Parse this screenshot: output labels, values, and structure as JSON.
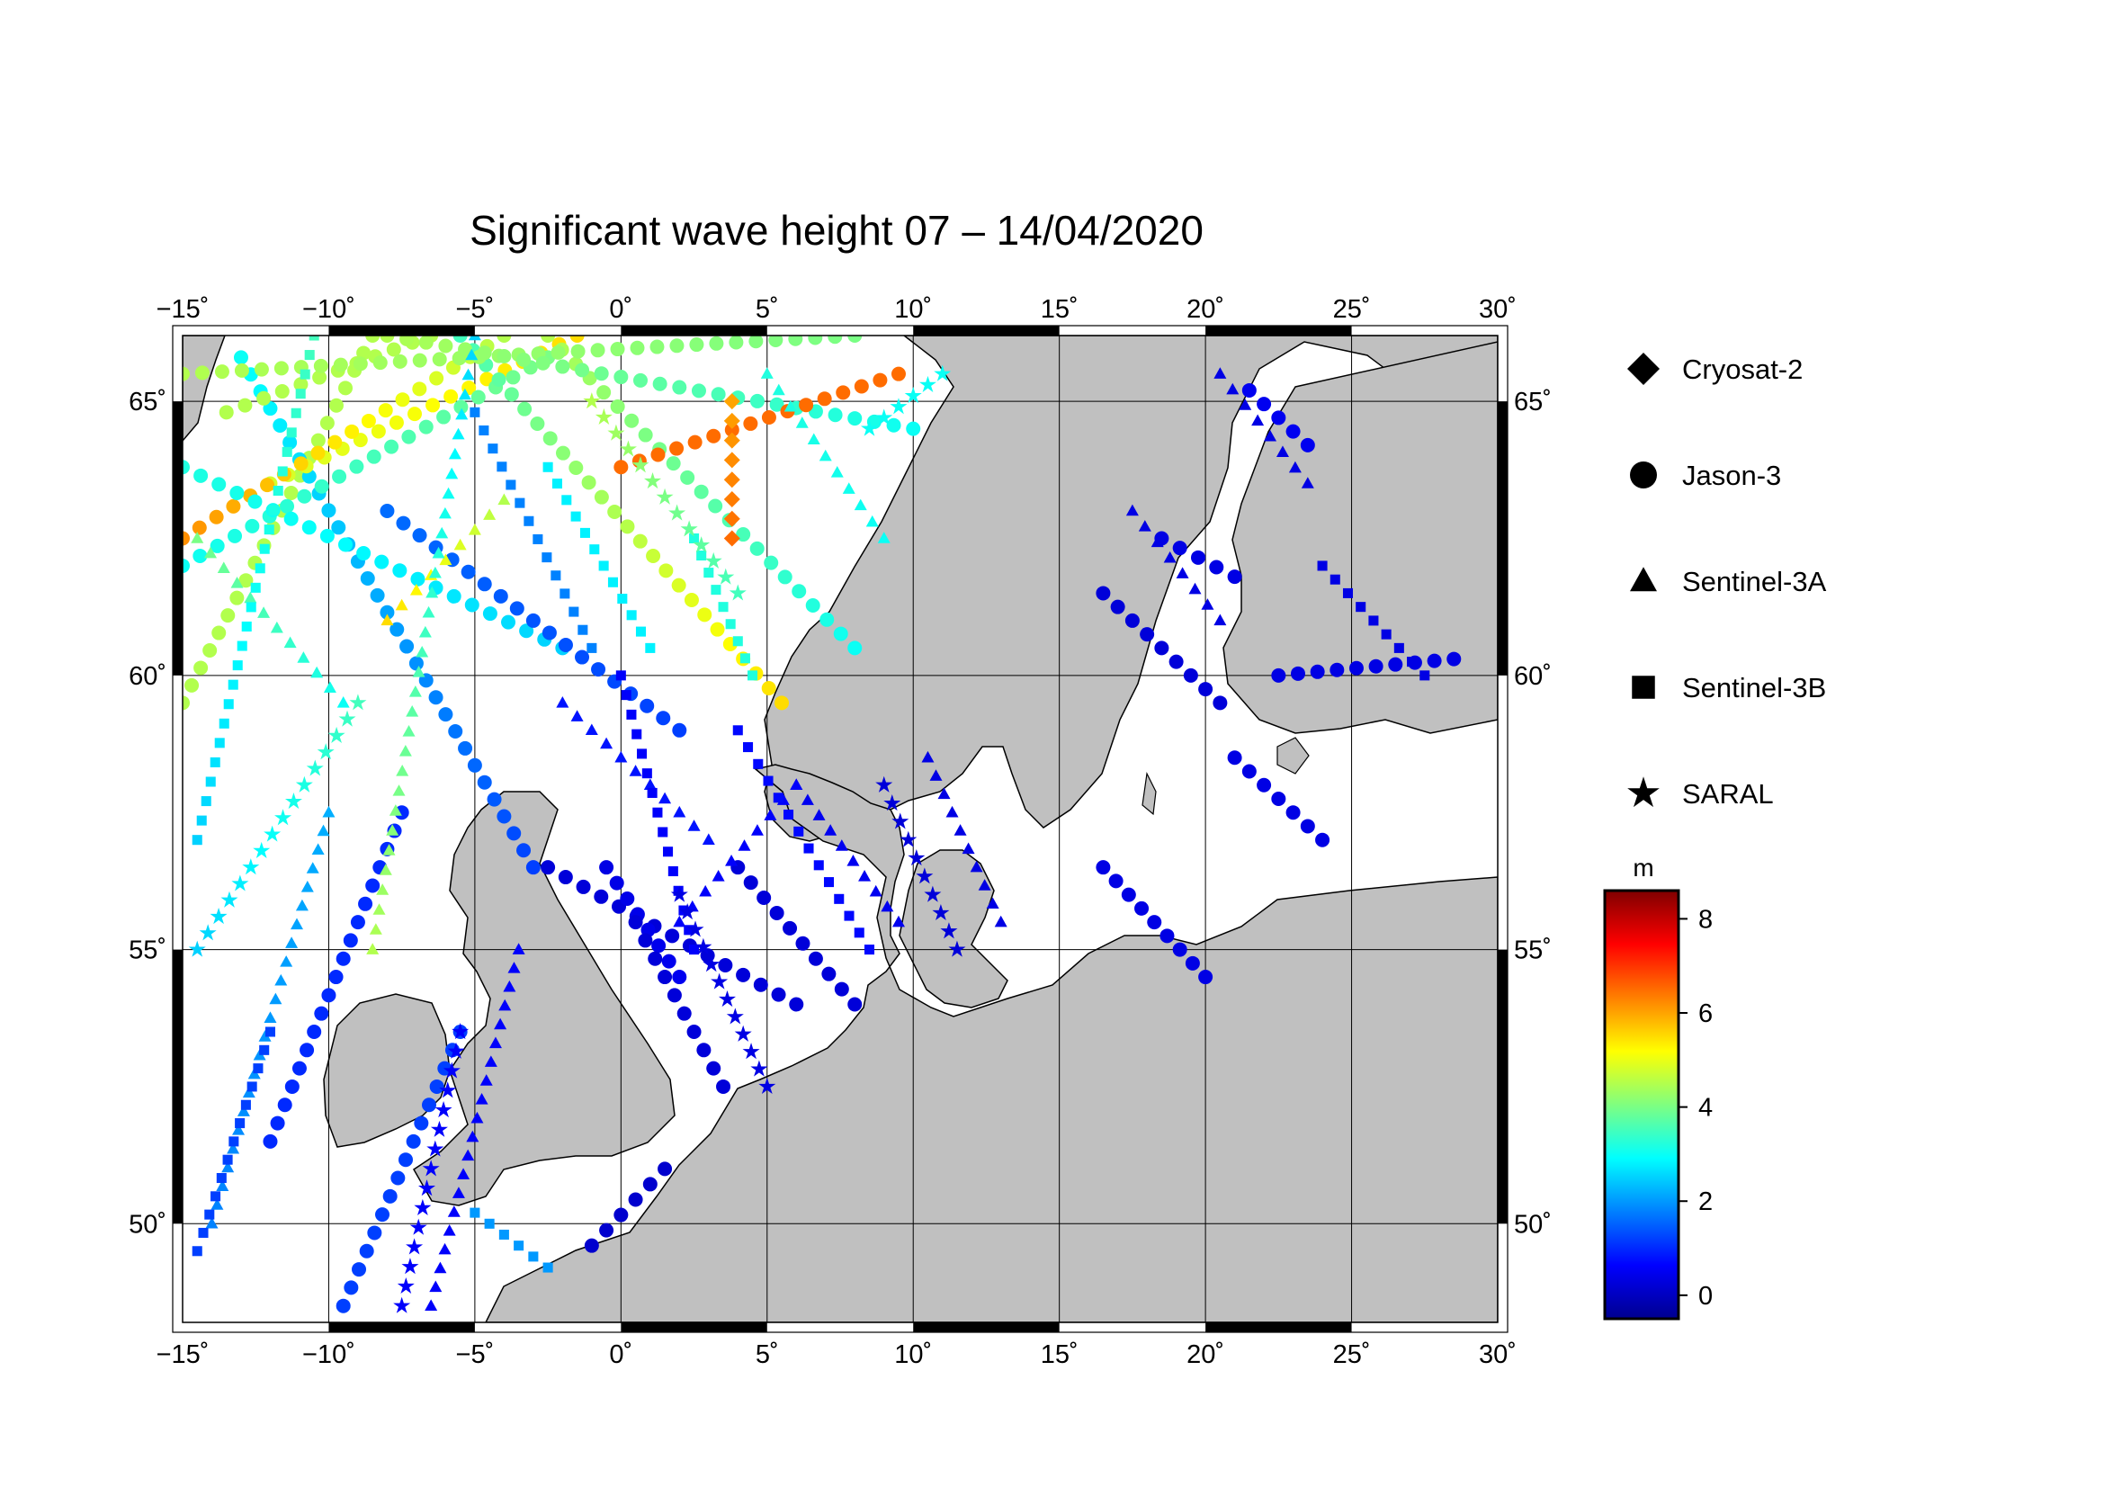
{
  "title": "Significant wave height 07 – 14/04/2020",
  "map": {
    "lon_range": [
      -15,
      30
    ],
    "lat_range": [
      48.2,
      66.2
    ],
    "lon_ticks": [
      "−15˚",
      "−10˚",
      "−5˚",
      "0˚",
      "5˚",
      "10˚",
      "15˚",
      "20˚",
      "25˚",
      "30˚"
    ],
    "lat_ticks": [
      "50˚",
      "55˚",
      "60˚",
      "65˚"
    ],
    "land_color": "#c0c0c0",
    "sea_color": "#ffffff"
  },
  "legend": {
    "items": [
      {
        "label": "Cryosat-2",
        "symbol": "diamond"
      },
      {
        "label": "Jason-3",
        "symbol": "circle"
      },
      {
        "label": "Sentinel-3A",
        "symbol": "triangle"
      },
      {
        "label": "Sentinel-3B",
        "symbol": "square"
      },
      {
        "label": "SARAL",
        "symbol": "star"
      }
    ]
  },
  "colorbar": {
    "unit": "m",
    "min": -0.5,
    "max": 8.6,
    "ticks": [
      "8",
      "6",
      "4",
      "2",
      "0"
    ],
    "colormap": "jet"
  },
  "chart_data": {
    "type": "scatter",
    "title": "Significant wave height 07 – 14/04/2020",
    "xlabel": "",
    "ylabel": "",
    "xlim": [
      -15,
      30
    ],
    "ylim": [
      48.2,
      66.2
    ],
    "value_unit": "m",
    "series": [
      {
        "name": "Jason-3",
        "marker": "circle",
        "tracks": [
          {
            "from": [
              -15,
              59.5
            ],
            "to": [
              -8.5,
              66.2
            ],
            "v0": 4.5,
            "v1": 4.5
          },
          {
            "from": [
              -13,
              65.8
            ],
            "to": [
              -3,
              56.5
            ],
            "v0": 3.0,
            "v1": 1.2
          },
          {
            "from": [
              -12,
              63.5
            ],
            "to": [
              -1.5,
              66.2
            ],
            "v0": 4.8,
            "v1": 5.5
          },
          {
            "from": [
              -13.5,
              64.8
            ],
            "to": [
              -6.5,
              66.2
            ],
            "v0": 4.5,
            "v1": 4.5
          },
          {
            "from": [
              -15,
              62.0
            ],
            "to": [
              -2.5,
              65.8
            ],
            "v0": 3.0,
            "v1": 4.0
          },
          {
            "from": [
              -15,
              62.5
            ],
            "to": [
              -4.0,
              66.2
            ],
            "v0": 6.2,
            "v1": 4.5
          },
          {
            "from": [
              -5.5,
              66.2
            ],
            "to": [
              5.5,
              59.5
            ],
            "v0": 3.5,
            "v1": 5.5
          },
          {
            "from": [
              -2.5,
              66.2
            ],
            "to": [
              8.0,
              60.5
            ],
            "v0": 4.5,
            "v1": 3.0
          },
          {
            "from": [
              -15,
              65.5
            ],
            "to": [
              8.0,
              66.2
            ],
            "v0": 4.5,
            "v1": 4.0
          },
          {
            "from": [
              -8,
              66.2
            ],
            "to": [
              10,
              64.5
            ],
            "v0": 4.5,
            "v1": 3.0
          },
          {
            "from": [
              0,
              63.8
            ],
            "to": [
              9.5,
              65.5
            ],
            "v0": 6.5,
            "v1": 6.5
          },
          {
            "from": [
              -15,
              63.8
            ],
            "to": [
              -2,
              60.5
            ],
            "v0": 3.2,
            "v1": 2.5
          },
          {
            "from": [
              -8,
              63.0
            ],
            "to": [
              2,
              59.0
            ],
            "v0": 1.6,
            "v1": 1.2
          },
          {
            "from": [
              -7.5,
              57.5
            ],
            "to": [
              -12,
              51.5
            ],
            "v0": 1.0,
            "v1": 1.0
          },
          {
            "from": [
              -5.5,
              53.5
            ],
            "to": [
              -9.5,
              48.5
            ],
            "v0": 1.2,
            "v1": 1.2
          },
          {
            "from": [
              -2.5,
              56.5
            ],
            "to": [
              6.0,
              54.0
            ],
            "v0": 0.3,
            "v1": 0.3
          },
          {
            "from": [
              -0.5,
              56.5
            ],
            "to": [
              2.0,
              54.5
            ],
            "v0": 0.4,
            "v1": 0.5
          },
          {
            "from": [
              0.5,
              55.5
            ],
            "to": [
              3.5,
              52.5
            ],
            "v0": 0.3,
            "v1": 0.3
          },
          {
            "from": [
              4.0,
              56.5
            ],
            "to": [
              8.0,
              54.0
            ],
            "v0": 0.3,
            "v1": 0.3
          },
          {
            "from": [
              -1.0,
              49.6
            ],
            "to": [
              1.5,
              51.0
            ],
            "v0": 0.2,
            "v1": 0.2
          },
          {
            "from": [
              16.5,
              56.5
            ],
            "to": [
              20.0,
              54.5
            ],
            "v0": 0.4,
            "v1": 0.4
          },
          {
            "from": [
              16.5,
              61.5
            ],
            "to": [
              20.5,
              59.5
            ],
            "v0": 0.3,
            "v1": 0.3
          },
          {
            "from": [
              21.5,
              65.2
            ],
            "to": [
              23.5,
              64.2
            ],
            "v0": 0.5,
            "v1": 0.5
          },
          {
            "from": [
              22.5,
              60.0
            ],
            "to": [
              28.5,
              60.3
            ],
            "v0": 0.4,
            "v1": 0.4
          },
          {
            "from": [
              21.0,
              58.5
            ],
            "to": [
              24.0,
              57.0
            ],
            "v0": 0.4,
            "v1": 0.4
          },
          {
            "from": [
              18.5,
              62.5
            ],
            "to": [
              21.0,
              61.8
            ],
            "v0": 0.4,
            "v1": 0.4
          }
        ]
      },
      {
        "name": "Sentinel-3A",
        "marker": "triangle",
        "tracks": [
          {
            "from": [
              -14.5,
              62.5
            ],
            "to": [
              -9.5,
              59.5
            ],
            "v0": 4.0,
            "v1": 3.0
          },
          {
            "from": [
              -8,
              61.0
            ],
            "to": [
              -4,
              63.2
            ],
            "v0": 5.5,
            "v1": 4.5
          },
          {
            "from": [
              -5,
              66.2
            ],
            "to": [
              -8.5,
              55.0
            ],
            "v0": 2.5,
            "v1": 4.5
          },
          {
            "from": [
              -14.0,
              50.0
            ],
            "to": [
              -10.0,
              57.5
            ],
            "v0": 1.8,
            "v1": 2.2
          },
          {
            "from": [
              -6.5,
              48.5
            ],
            "to": [
              -3.5,
              55.0
            ],
            "v0": 0.6,
            "v1": 0.6
          },
          {
            "from": [
              -2.0,
              59.5
            ],
            "to": [
              3.0,
              57.0
            ],
            "v0": 0.8,
            "v1": 0.8
          },
          {
            "from": [
              6.0,
              58.0
            ],
            "to": [
              9.5,
              55.5
            ],
            "v0": 0.5,
            "v1": 0.5
          },
          {
            "from": [
              2.0,
              55.5
            ],
            "to": [
              6.0,
              58.0
            ],
            "v0": 0.6,
            "v1": 0.6
          },
          {
            "from": [
              20.5,
              65.5
            ],
            "to": [
              23.5,
              63.5
            ],
            "v0": 0.4,
            "v1": 0.4
          },
          {
            "from": [
              17.5,
              63.0
            ],
            "to": [
              20.5,
              61.0
            ],
            "v0": 0.4,
            "v1": 0.4
          },
          {
            "from": [
              10.5,
              58.5
            ],
            "to": [
              13.0,
              55.5
            ],
            "v0": 0.4,
            "v1": 0.4
          },
          {
            "from": [
              5.0,
              65.5
            ],
            "to": [
              9.0,
              62.5
            ],
            "v0": 3.2,
            "v1": 3.0
          }
        ]
      },
      {
        "name": "Sentinel-3B",
        "marker": "square",
        "tracks": [
          {
            "from": [
              -10.5,
              66.2
            ],
            "to": [
              -14.5,
              57.0
            ],
            "v0": 3.5,
            "v1": 2.5
          },
          {
            "from": [
              -5.0,
              64.8
            ],
            "to": [
              -1.0,
              60.5
            ],
            "v0": 1.8,
            "v1": 1.8
          },
          {
            "from": [
              -2.5,
              63.8
            ],
            "to": [
              1.0,
              60.5
            ],
            "v0": 2.8,
            "v1": 2.8
          },
          {
            "from": [
              2.5,
              62.5
            ],
            "to": [
              4.5,
              60.0
            ],
            "v0": 3.2,
            "v1": 3.2
          },
          {
            "from": [
              4.0,
              59.0
            ],
            "to": [
              8.5,
              55.0
            ],
            "v0": 0.7,
            "v1": 0.7
          },
          {
            "from": [
              0.0,
              60.0
            ],
            "to": [
              2.5,
              55.0
            ],
            "v0": 0.6,
            "v1": 0.6
          },
          {
            "from": [
              -14.5,
              49.5
            ],
            "to": [
              -12.0,
              53.5
            ],
            "v0": 1.2,
            "v1": 1.2
          },
          {
            "from": [
              -5.0,
              50.2
            ],
            "to": [
              -2.5,
              49.2
            ],
            "v0": 2.0,
            "v1": 2.0
          },
          {
            "from": [
              24.0,
              62.0
            ],
            "to": [
              27.5,
              60.0
            ],
            "v0": 0.4,
            "v1": 0.4
          }
        ]
      },
      {
        "name": "SARAL",
        "marker": "star",
        "tracks": [
          {
            "from": [
              -9.0,
              59.5
            ],
            "to": [
              -14.5,
              55.0
            ],
            "v0": 3.5,
            "v1": 2.5
          },
          {
            "from": [
              -7.5,
              48.5
            ],
            "to": [
              -5.5,
              53.5
            ],
            "v0": 0.6,
            "v1": 0.6
          },
          {
            "from": [
              4.0,
              61.5
            ],
            "to": [
              -1.0,
              65.0
            ],
            "v0": 3.5,
            "v1": 4.5
          },
          {
            "from": [
              2.0,
              56.0
            ],
            "to": [
              5.0,
              52.5
            ],
            "v0": 0.4,
            "v1": 0.4
          },
          {
            "from": [
              9.0,
              58.0
            ],
            "to": [
              11.5,
              55.0
            ],
            "v0": 0.3,
            "v1": 0.3
          },
          {
            "from": [
              8.5,
              64.5
            ],
            "to": [
              11.0,
              65.5
            ],
            "v0": 3.0,
            "v1": 3.0
          }
        ]
      },
      {
        "name": "Cryosat-2",
        "marker": "diamond",
        "tracks": [
          {
            "from": [
              3.8,
              62.5
            ],
            "to": [
              3.8,
              65.0
            ],
            "v0": 6.5,
            "v1": 6.0
          }
        ]
      }
    ]
  }
}
